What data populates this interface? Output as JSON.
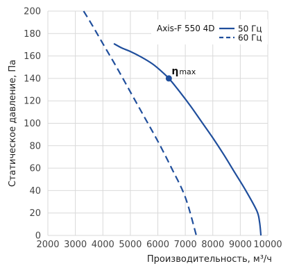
{
  "chart_data": {
    "type": "line",
    "title": "",
    "xlabel": "Производительность, м³/ч",
    "ylabel": "Статическое давление, Па",
    "xlim": [
      2000,
      10000
    ],
    "ylim": [
      0,
      200
    ],
    "x_ticks": [
      2000,
      3000,
      4000,
      5000,
      6000,
      7000,
      8000,
      9000,
      10000
    ],
    "y_ticks": [
      0,
      20,
      40,
      60,
      80,
      100,
      120,
      140,
      160,
      180,
      200
    ],
    "grid": true,
    "legend_title": "Axis-F 550 4D",
    "legend_position": "top-right",
    "series": [
      {
        "name": "50 Гц",
        "style": "solid",
        "color": "#1f4e9c",
        "points": [
          [
            4400,
            171
          ],
          [
            4700,
            167
          ],
          [
            5000,
            164
          ],
          [
            5400,
            159
          ],
          [
            5800,
            153
          ],
          [
            6100,
            147
          ],
          [
            6400,
            140
          ],
          [
            6800,
            128
          ],
          [
            7200,
            115
          ],
          [
            7600,
            101
          ],
          [
            8000,
            87
          ],
          [
            8400,
            72
          ],
          [
            8800,
            56
          ],
          [
            9200,
            40
          ],
          [
            9600,
            22
          ],
          [
            9700,
            12
          ],
          [
            9750,
            0
          ]
        ]
      },
      {
        "name": "60 Гц",
        "style": "dashed",
        "color": "#1f4e9c",
        "points": [
          [
            3300,
            200
          ],
          [
            3600,
            188
          ],
          [
            4000,
            171
          ],
          [
            4500,
            150
          ],
          [
            5000,
            128
          ],
          [
            5500,
            106
          ],
          [
            6000,
            84
          ],
          [
            6500,
            60
          ],
          [
            7000,
            34
          ],
          [
            7400,
            0
          ]
        ]
      }
    ],
    "annotations": [
      {
        "label": "η",
        "suffix": "max",
        "x": 6400,
        "y": 140
      }
    ]
  }
}
